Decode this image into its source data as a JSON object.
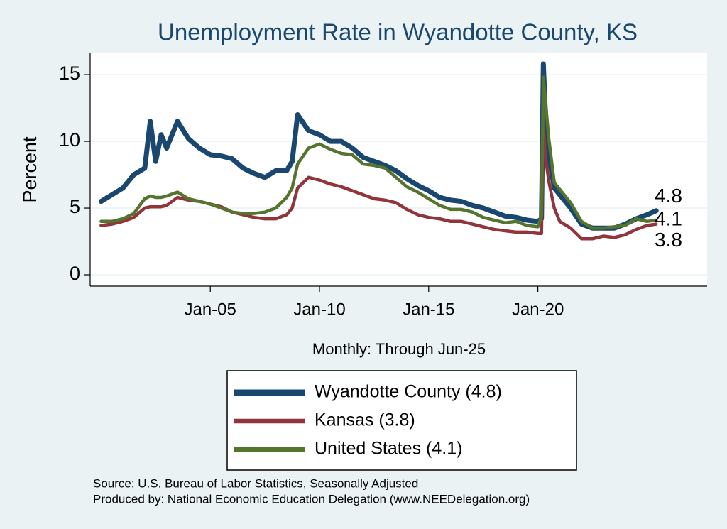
{
  "chart_data": {
    "type": "line",
    "title": "Unemployment Rate in Wyandotte  County, KS",
    "y_label": "Percent",
    "x_label": "Monthly: Through Jun-25",
    "notes": [
      "Source: U.S. Bureau of Labor Statistics, Seasonally Adjusted",
      "Produced by: National Economic Education Delegation (www.NEEDelegation.org)"
    ],
    "x": [
      "Jan-00",
      "Jul-00",
      "Jan-01",
      "Jul-01",
      "Jan-02",
      "Apr-02",
      "Jul-02",
      "Oct-02",
      "Jan-03",
      "Jul-03",
      "Jan-04",
      "Jul-04",
      "Jan-05",
      "Jul-05",
      "Jan-06",
      "Jul-06",
      "Jan-07",
      "Jul-07",
      "Jan-08",
      "Jul-08",
      "Oct-08",
      "Jan-09",
      "Jul-09",
      "Jan-10",
      "Jul-10",
      "Jan-11",
      "Jul-11",
      "Jan-12",
      "Jul-12",
      "Jan-13",
      "Jul-13",
      "Jan-14",
      "Jul-14",
      "Jan-15",
      "Jul-15",
      "Jan-16",
      "Jul-16",
      "Jan-17",
      "Jul-17",
      "Jan-18",
      "Jul-18",
      "Jan-19",
      "Jul-19",
      "Jan-20",
      "Mar-20",
      "Apr-20",
      "May-20",
      "Jul-20",
      "Oct-20",
      "Jan-21",
      "Jul-21",
      "Jan-22",
      "Jul-22",
      "Jan-23",
      "Jul-23",
      "Jan-24",
      "Jul-24",
      "Jan-25",
      "Jun-25"
    ],
    "series": [
      {
        "name": "Wyandotte  County (4.8)",
        "color": "#1a476f",
        "end_label": "4.8",
        "values": [
          5.5,
          6.0,
          6.5,
          7.5,
          8.0,
          11.5,
          8.5,
          10.5,
          9.5,
          11.5,
          10.2,
          9.5,
          9.0,
          8.9,
          8.7,
          8.0,
          7.6,
          7.3,
          7.8,
          7.8,
          8.5,
          12.0,
          10.8,
          10.5,
          10.0,
          10.0,
          9.5,
          8.8,
          8.5,
          8.2,
          7.8,
          7.2,
          6.7,
          6.3,
          5.8,
          5.6,
          5.5,
          5.2,
          5.0,
          4.7,
          4.4,
          4.3,
          4.1,
          4.0,
          4.2,
          15.8,
          12.5,
          9.0,
          6.5,
          6.0,
          5.0,
          3.8,
          3.5,
          3.5,
          3.5,
          3.8,
          4.2,
          4.5,
          4.8
        ]
      },
      {
        "name": "Kansas (3.8)",
        "color": "#90353b",
        "end_label": "3.8",
        "values": [
          3.7,
          3.8,
          4.0,
          4.3,
          5.0,
          5.1,
          5.1,
          5.1,
          5.2,
          5.8,
          5.6,
          5.5,
          5.3,
          5.1,
          4.7,
          4.5,
          4.3,
          4.2,
          4.2,
          4.5,
          5.0,
          6.5,
          7.3,
          7.1,
          6.8,
          6.6,
          6.3,
          6.0,
          5.7,
          5.6,
          5.4,
          4.9,
          4.5,
          4.3,
          4.2,
          4.0,
          4.0,
          3.8,
          3.6,
          3.4,
          3.3,
          3.2,
          3.2,
          3.1,
          3.1,
          11.5,
          9.0,
          7.0,
          5.0,
          4.0,
          3.5,
          2.7,
          2.7,
          2.9,
          2.8,
          3.0,
          3.4,
          3.7,
          3.8
        ]
      },
      {
        "name": "United States (4.1)",
        "color": "#55752f",
        "end_label": "4.1",
        "values": [
          4.0,
          4.0,
          4.2,
          4.6,
          5.7,
          5.9,
          5.8,
          5.8,
          5.9,
          6.2,
          5.7,
          5.5,
          5.3,
          5.0,
          4.7,
          4.6,
          4.6,
          4.7,
          5.0,
          5.8,
          6.5,
          8.3,
          9.5,
          9.8,
          9.4,
          9.1,
          9.0,
          8.3,
          8.2,
          8.0,
          7.3,
          6.6,
          6.2,
          5.7,
          5.2,
          4.9,
          4.9,
          4.7,
          4.3,
          4.1,
          3.9,
          4.0,
          3.7,
          3.6,
          4.4,
          14.8,
          13.2,
          10.2,
          6.9,
          6.4,
          5.4,
          4.0,
          3.5,
          3.5,
          3.6,
          3.7,
          4.2,
          4.0,
          4.1
        ]
      }
    ],
    "xlim": [
      "Jul-99",
      "Oct-27"
    ],
    "xticks": [
      "Jan-05",
      "Jan-10",
      "Jan-15",
      "Jan-20"
    ],
    "ylim": [
      -0.85,
      16.6
    ],
    "yticks": [
      0,
      5,
      10,
      15
    ],
    "grid": true
  }
}
